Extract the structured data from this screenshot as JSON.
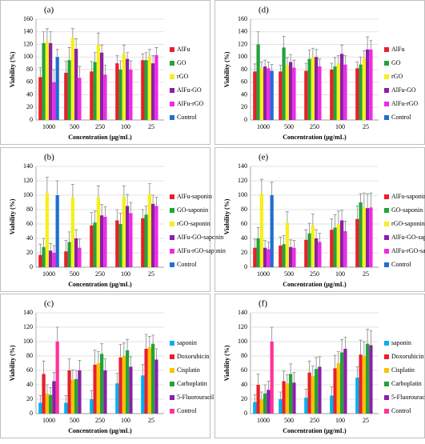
{
  "chart_data": [
    {
      "type": "bar",
      "title": "(a)",
      "ylabel": "Viability (%)",
      "xlabel": "Concentration (μg/mL)",
      "categories": [
        "1000",
        "500",
        "250",
        "100",
        "25"
      ],
      "ylim": [
        0,
        160
      ],
      "yticks": [
        0,
        20,
        40,
        60,
        80,
        100,
        120,
        140,
        160
      ],
      "grid": true,
      "series": [
        {
          "name": "AlFu",
          "color": "#e8202a",
          "values": [
            68,
            75,
            77,
            90,
            95
          ],
          "errors": [
            15,
            18,
            16,
            12,
            10
          ]
        },
        {
          "name": "GO",
          "color": "#22a33a",
          "values": [
            122,
            95,
            92,
            80,
            95
          ],
          "errors": [
            18,
            20,
            15,
            14,
            12
          ]
        },
        {
          "name": "rGO",
          "color": "#f5f01a",
          "values": [
            125,
            130,
            120,
            105,
            100
          ],
          "errors": [
            20,
            15,
            18,
            14,
            12
          ]
        },
        {
          "name": "AlFu-GO",
          "color": "#8b1fa8",
          "values": [
            122,
            113,
            107,
            97,
            90
          ],
          "errors": [
            18,
            16,
            12,
            10,
            12
          ]
        },
        {
          "name": "AlFu-rGO",
          "color": "#ee2ae8",
          "values": [
            60,
            67,
            72,
            80,
            103
          ],
          "errors": [
            20,
            18,
            15,
            14,
            12
          ]
        },
        {
          "name": "Control",
          "color": "#1f6fd1",
          "values": [
            100,
            null,
            null,
            null,
            null
          ],
          "errors": [
            12,
            null,
            null,
            null,
            null
          ]
        }
      ]
    },
    {
      "type": "bar",
      "title": "(b)",
      "ylabel": "Viability (%)",
      "xlabel": "Concentration (μg/mL)",
      "categories": [
        "1000",
        "500",
        "250",
        "100",
        "25"
      ],
      "ylim": [
        0,
        140
      ],
      "yticks": [
        0,
        20,
        40,
        60,
        80,
        100,
        120,
        140
      ],
      "grid": true,
      "series": [
        {
          "name": "AlFu-saponin",
          "color": "#e8202a",
          "values": [
            17,
            22,
            58,
            65,
            68
          ],
          "errors": [
            15,
            15,
            18,
            15,
            12
          ]
        },
        {
          "name": "GO-saponin",
          "color": "#22a33a",
          "values": [
            28,
            35,
            62,
            60,
            73
          ],
          "errors": [
            12,
            14,
            16,
            15,
            12
          ]
        },
        {
          "name": "rGO-saponin",
          "color": "#f5f01a",
          "values": [
            103,
            97,
            97,
            98,
            102
          ],
          "errors": [
            22,
            18,
            16,
            15,
            14
          ]
        },
        {
          "name": "AlFu-GO-saponin",
          "color": "#8b1fa8",
          "values": [
            23,
            40,
            72,
            85,
            88
          ],
          "errors": [
            10,
            12,
            15,
            16,
            12
          ]
        },
        {
          "name": "AlFu-rGO-saponin",
          "color": "#ee2ae8",
          "values": [
            20,
            27,
            70,
            75,
            85
          ],
          "errors": [
            10,
            12,
            14,
            15,
            12
          ]
        },
        {
          "name": "Control",
          "color": "#1f6fd1",
          "values": [
            100,
            null,
            null,
            null,
            null
          ],
          "errors": [
            20,
            null,
            null,
            null,
            null
          ]
        }
      ]
    },
    {
      "type": "bar",
      "title": "(c)",
      "ylabel": "Viability (%)",
      "xlabel": "Concentration (μg/mL)",
      "categories": [
        "1000",
        "500",
        "250",
        "100",
        "25"
      ],
      "ylim": [
        0,
        140
      ],
      "yticks": [
        0,
        20,
        40,
        60,
        80,
        100,
        120,
        140
      ],
      "grid": true,
      "series": [
        {
          "name": "saponin",
          "color": "#00b0f0",
          "values": [
            15,
            15,
            20,
            42,
            53
          ],
          "errors": [
            10,
            10,
            12,
            14,
            15
          ]
        },
        {
          "name": "Doxorubicin",
          "color": "#e8202a",
          "values": [
            55,
            60,
            68,
            78,
            90
          ],
          "errors": [
            18,
            16,
            20,
            18,
            20
          ]
        },
        {
          "name": "Cisplatin",
          "color": "#ffc000",
          "values": [
            28,
            47,
            70,
            80,
            92
          ],
          "errors": [
            12,
            14,
            16,
            18,
            15
          ]
        },
        {
          "name": "Carboplatin",
          "color": "#22a33a",
          "values": [
            26,
            48,
            83,
            88,
            97
          ],
          "errors": [
            10,
            12,
            14,
            15,
            12
          ]
        },
        {
          "name": "5-Fluorouracil",
          "color": "#8b1fa8",
          "values": [
            45,
            60,
            60,
            65,
            75
          ],
          "errors": [
            12,
            14,
            16,
            14,
            15
          ]
        },
        {
          "name": "Control",
          "color": "#ff3399",
          "values": [
            100,
            null,
            null,
            null,
            null
          ],
          "errors": [
            20,
            null,
            null,
            null,
            null
          ]
        }
      ]
    },
    {
      "type": "bar",
      "title": "(d)",
      "ylabel": "Viability (%)",
      "xlabel": "Concentration (μg/mL)",
      "categories": [
        "1000",
        "500",
        "250",
        "100",
        "25"
      ],
      "ylim": [
        0,
        160
      ],
      "yticks": [
        0,
        20,
        40,
        60,
        80,
        100,
        120,
        140,
        160
      ],
      "grid": true,
      "series": [
        {
          "name": "AlFu",
          "color": "#e8202a",
          "values": [
            77,
            77,
            78,
            80,
            82
          ],
          "errors": [
            12,
            10,
            12,
            10,
            10
          ]
        },
        {
          "name": "GO",
          "color": "#22a33a",
          "values": [
            120,
            115,
            97,
            85,
            88
          ],
          "errors": [
            20,
            18,
            14,
            14,
            12
          ]
        },
        {
          "name": "rGO",
          "color": "#f5f01a",
          "values": [
            82,
            87,
            100,
            90,
            98
          ],
          "errors": [
            10,
            12,
            14,
            12,
            12
          ]
        },
        {
          "name": "AlFu-GO",
          "color": "#8b1fa8",
          "values": [
            85,
            92,
            100,
            105,
            112
          ],
          "errors": [
            10,
            12,
            12,
            14,
            20
          ]
        },
        {
          "name": "AlFu-rGO",
          "color": "#ee2ae8",
          "values": [
            82,
            83,
            85,
            88,
            112
          ],
          "errors": [
            10,
            12,
            12,
            14,
            14
          ]
        },
        {
          "name": "Control",
          "color": "#1f6fd1",
          "values": [
            78,
            null,
            null,
            null,
            null
          ],
          "errors": [
            10,
            null,
            null,
            null,
            null
          ]
        }
      ]
    },
    {
      "type": "bar",
      "title": "(e)",
      "ylabel": "Viability (%)",
      "xlabel": "Concentration (μg/mL)",
      "categories": [
        "1000",
        "500",
        "250",
        "100",
        "25"
      ],
      "ylim": [
        0,
        140
      ],
      "yticks": [
        0,
        20,
        40,
        60,
        80,
        100,
        120,
        140
      ],
      "grid": true,
      "series": [
        {
          "name": "AlFu-saponin",
          "color": "#e8202a",
          "values": [
            27,
            30,
            38,
            52,
            67
          ],
          "errors": [
            12,
            12,
            14,
            15,
            18
          ]
        },
        {
          "name": "GO-saponin",
          "color": "#22a33a",
          "values": [
            40,
            32,
            47,
            55,
            90
          ],
          "errors": [
            15,
            12,
            14,
            18,
            12
          ]
        },
        {
          "name": "rGO-saponin",
          "color": "#f5f01a",
          "values": [
            102,
            62,
            58,
            60,
            83
          ],
          "errors": [
            20,
            15,
            16,
            18,
            20
          ]
        },
        {
          "name": "AlFu-GO-saponin",
          "color": "#8b1fa8",
          "values": [
            27,
            28,
            40,
            65,
            82
          ],
          "errors": [
            10,
            10,
            12,
            14,
            20
          ]
        },
        {
          "name": "AlFu-rGO-saponin",
          "color": "#ee2ae8",
          "values": [
            25,
            27,
            35,
            50,
            83
          ],
          "errors": [
            10,
            10,
            12,
            14,
            20
          ]
        },
        {
          "name": "Control",
          "color": "#1f6fd1",
          "values": [
            100,
            null,
            null,
            null,
            null
          ],
          "errors": [
            18,
            null,
            null,
            null,
            null
          ]
        }
      ]
    },
    {
      "type": "bar",
      "title": "(f)",
      "ylabel": "Viability (%)",
      "xlabel": "Concentration (μg/mL)",
      "categories": [
        "1000",
        "500",
        "250",
        "100",
        "25"
      ],
      "ylim": [
        0,
        140
      ],
      "yticks": [
        0,
        20,
        40,
        60,
        80,
        100,
        120,
        140
      ],
      "grid": true,
      "series": [
        {
          "name": "saponin",
          "color": "#00b0f0",
          "values": [
            16,
            20,
            22,
            25,
            50
          ],
          "errors": [
            10,
            10,
            12,
            12,
            15
          ]
        },
        {
          "name": "Doxorubicin",
          "color": "#e8202a",
          "values": [
            40,
            45,
            57,
            63,
            82
          ],
          "errors": [
            15,
            14,
            16,
            18,
            20
          ]
        },
        {
          "name": "Cisplatin",
          "color": "#ffc000",
          "values": [
            20,
            42,
            52,
            70,
            80
          ],
          "errors": [
            10,
            12,
            14,
            16,
            20
          ]
        },
        {
          "name": "Carboplatin",
          "color": "#22a33a",
          "values": [
            28,
            55,
            62,
            85,
            97
          ],
          "errors": [
            12,
            14,
            16,
            18,
            20
          ]
        },
        {
          "name": "5-Fluorouracil",
          "color": "#8b1fa8",
          "values": [
            33,
            43,
            65,
            90,
            95
          ],
          "errors": [
            12,
            14,
            14,
            16,
            20
          ]
        },
        {
          "name": "Control",
          "color": "#ff3399",
          "values": [
            100,
            null,
            null,
            null,
            null
          ],
          "errors": [
            20,
            null,
            null,
            null,
            null
          ]
        }
      ]
    }
  ]
}
